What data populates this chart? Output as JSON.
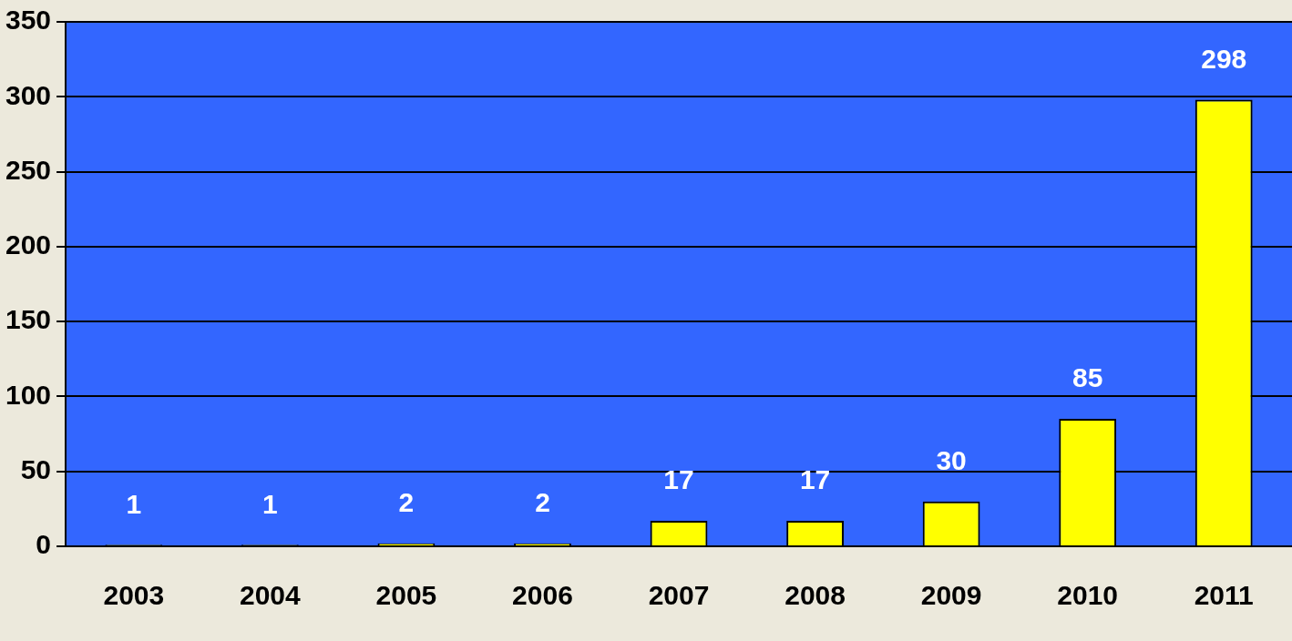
{
  "chart_data": {
    "type": "bar",
    "categories": [
      "2003",
      "2004",
      "2005",
      "2006",
      "2007",
      "2008",
      "2009",
      "2010",
      "2011"
    ],
    "values": [
      1,
      1,
      2,
      2,
      17,
      17,
      30,
      85,
      298
    ],
    "color": "#ffff00",
    "ylim": [
      0,
      350
    ],
    "yticks": [
      0,
      50,
      100,
      150,
      200,
      250,
      300,
      350
    ],
    "grid": "y",
    "data_labels": true
  }
}
